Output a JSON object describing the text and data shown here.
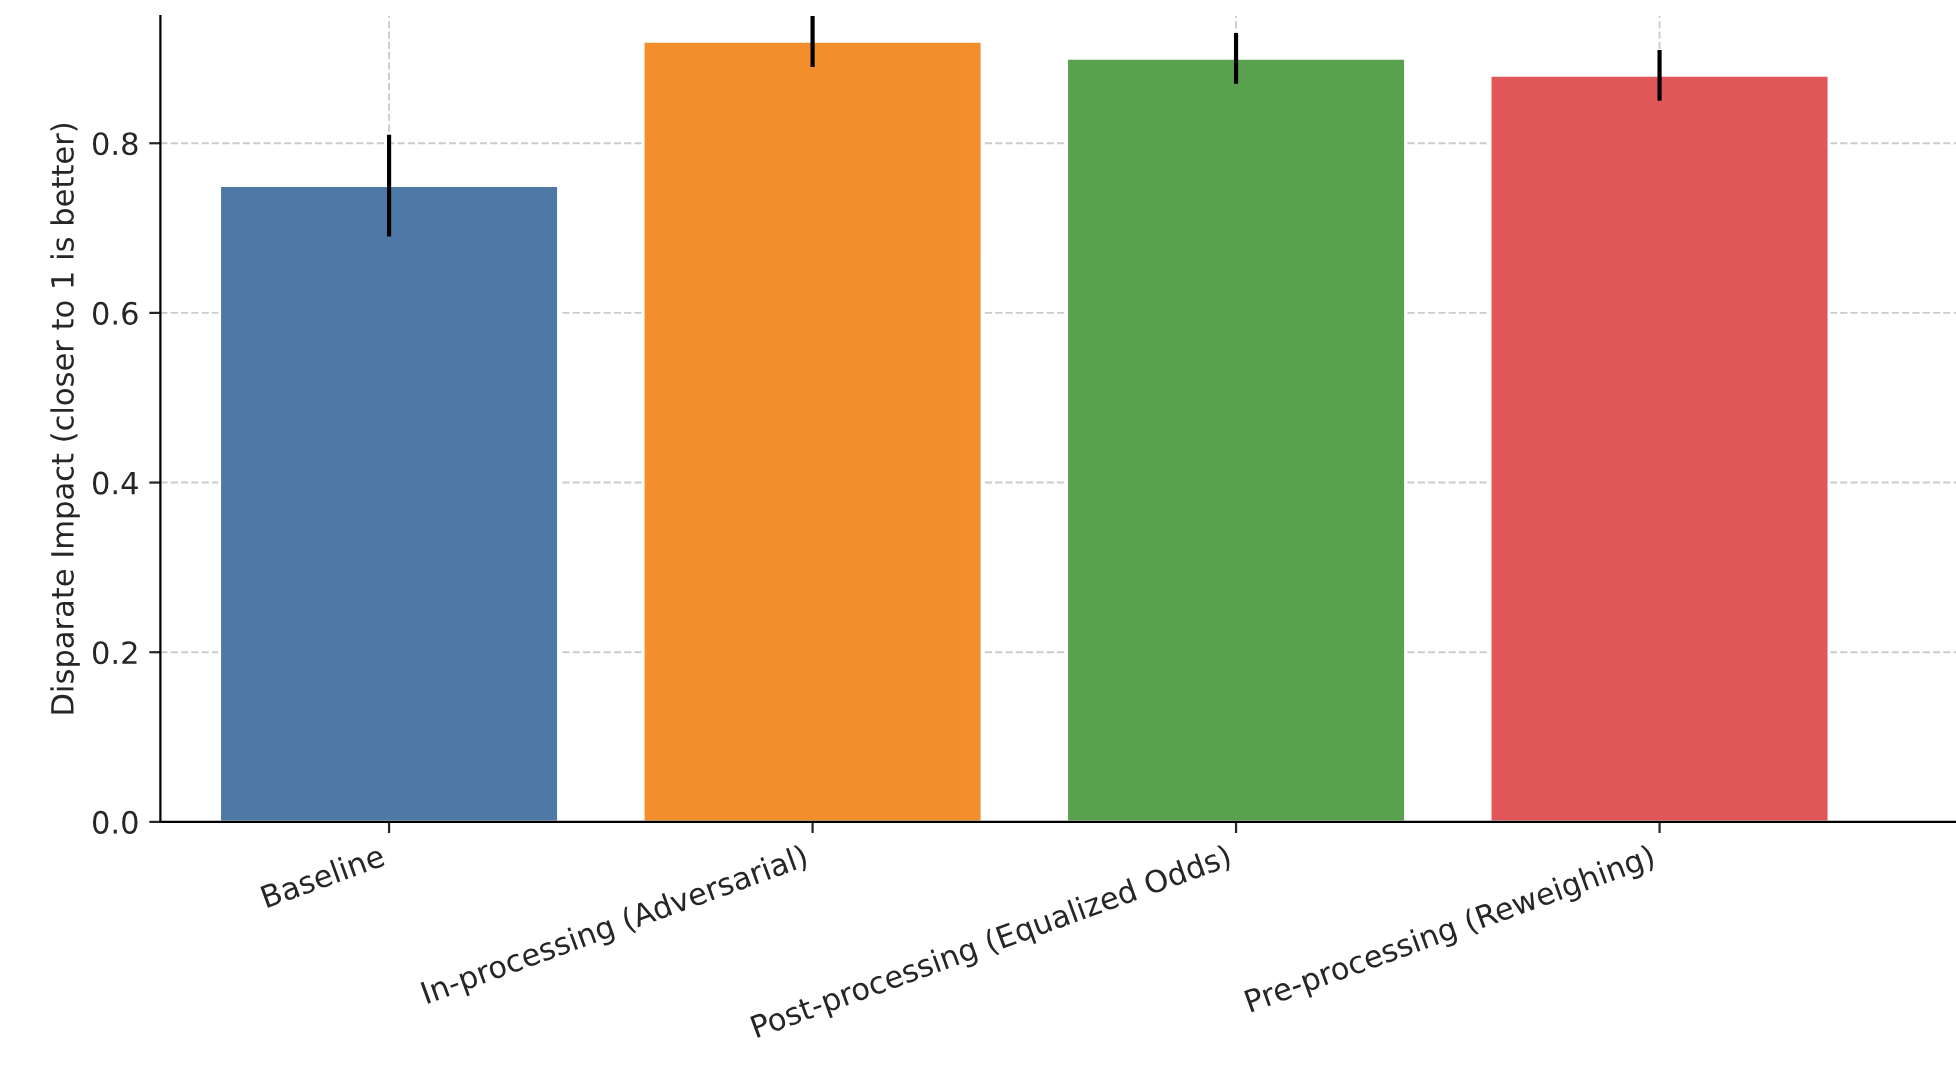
{
  "chart_data": {
    "type": "bar",
    "ylabel": "Disparate Impact (closer to 1 is better)",
    "categories": [
      "Baseline",
      "In-processing (Adversarial)",
      "Post-processing (Equalized Odds)",
      "Pre-processing (Reweighing)"
    ],
    "values": [
      0.75,
      0.92,
      0.9,
      0.88
    ],
    "errors": [
      0.06,
      0.03,
      0.03,
      0.03
    ],
    "colors": [
      "#4e79a7",
      "#f28e2b",
      "#59a14f",
      "#e15759"
    ],
    "ylim": [
      0,
      0.95
    ],
    "yticks": [
      {
        "value": 0,
        "label": "0.0"
      },
      0.2,
      0.4,
      0.6,
      0.8
    ],
    "grid": true
  }
}
